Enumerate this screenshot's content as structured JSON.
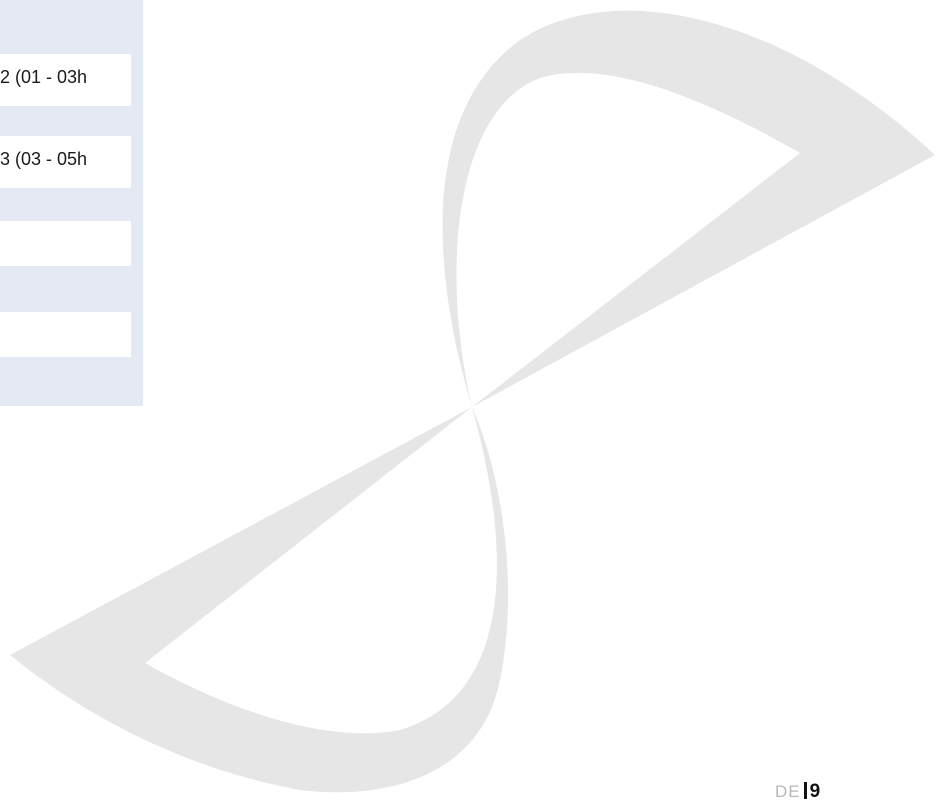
{
  "panel": {
    "rows": [
      {
        "label": "2 (01 - 03h"
      },
      {
        "label": "3 (03 - 05h"
      },
      {
        "label": ""
      },
      {
        "label": ""
      }
    ]
  },
  "footer": {
    "language": "DE",
    "page_number": "9"
  },
  "colors": {
    "panel_background": "#e4e9f4",
    "row_background": "#ffffff",
    "watermark": "#e6e6e6"
  },
  "icons": {
    "watermark": "figure-eight-logo-icon"
  }
}
